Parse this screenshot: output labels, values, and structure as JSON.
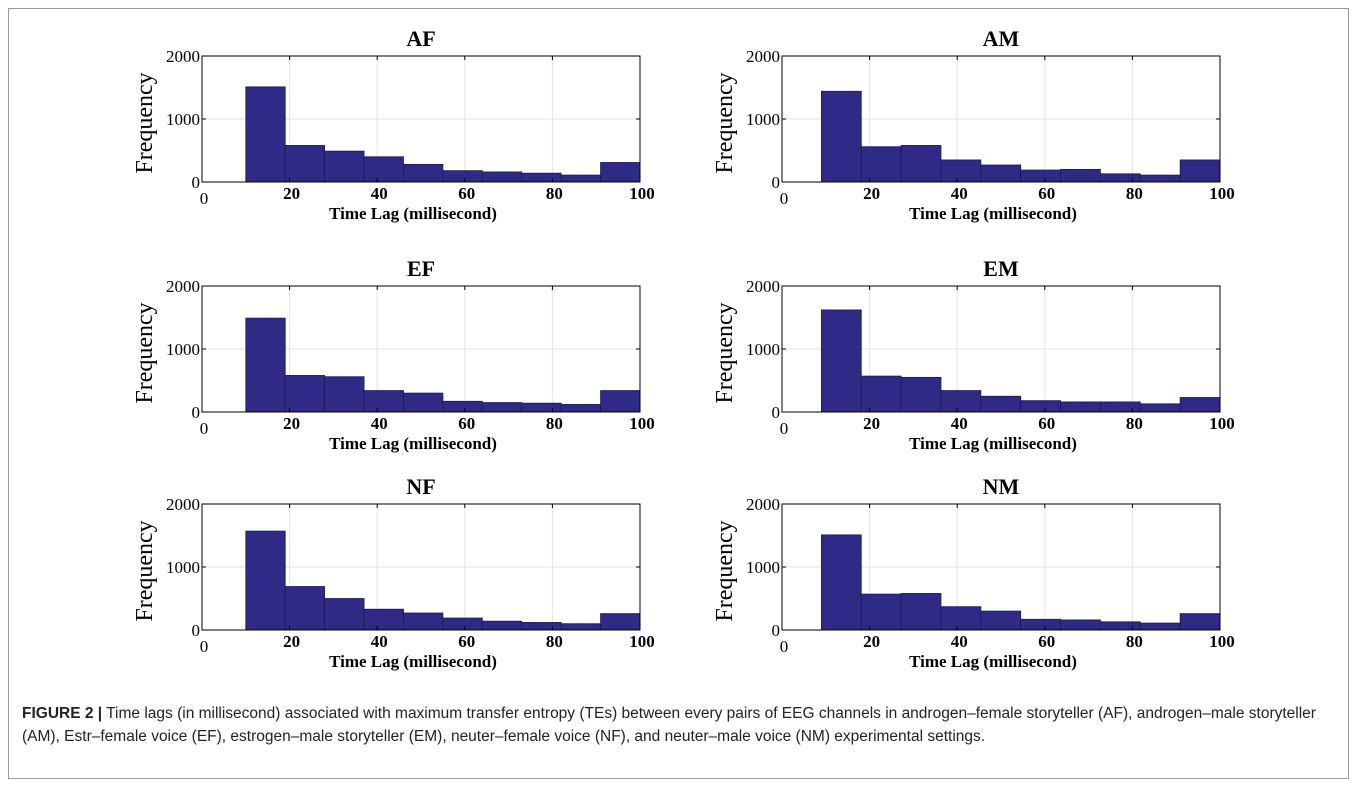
{
  "caption": {
    "label": "FIGURE 2 |",
    "text": " Time lags (in millisecond) associated with maximum transfer entropy (TEs) between every pairs of EEG channels in androgen–female storyteller (AF), androgen–male storyteller (AM), Estr–female voice (EF), estrogen–male storyteller (EM), neuter–female voice (NF), and neuter–male voice (NM) experimental settings."
  },
  "colors": {
    "bar": "#2e2a86",
    "bar_edge": "#1c1a4e",
    "grid": "#e3e3e3",
    "axis": "#000000"
  },
  "chart_data": [
    {
      "type": "bar",
      "title": "AF",
      "xlabel": "Time Lag (millisecond)",
      "ylabel": "Frequency",
      "xlim": [
        0,
        100
      ],
      "ylim": [
        0,
        2000
      ],
      "xticks": [
        "0",
        "20",
        "40",
        "60",
        "80",
        "100"
      ],
      "yticks": [
        "0",
        "1000",
        "2000"
      ],
      "bin_edges": [
        10,
        19,
        28,
        37,
        46,
        55,
        64,
        73,
        82,
        91,
        100
      ],
      "values": [
        1510,
        580,
        490,
        400,
        280,
        180,
        160,
        140,
        110,
        310
      ],
      "grid": true
    },
    {
      "type": "bar",
      "title": "AM",
      "xlabel": "Time Lag (millisecond)",
      "ylabel": "Frequency",
      "xlim": [
        0,
        100
      ],
      "ylim": [
        0,
        2000
      ],
      "xticks": [
        "0",
        "20",
        "40",
        "60",
        "80",
        "100"
      ],
      "yticks": [
        "0",
        "1000",
        "2000"
      ],
      "bin_edges": [
        9,
        18.1,
        27.2,
        36.3,
        45.4,
        54.5,
        63.6,
        72.7,
        81.8,
        90.9,
        100
      ],
      "values": [
        1440,
        560,
        580,
        350,
        270,
        190,
        200,
        130,
        110,
        350
      ],
      "grid": true
    },
    {
      "type": "bar",
      "title": "EF",
      "xlabel": "Time Lag (millisecond)",
      "ylabel": "Frequency",
      "xlim": [
        0,
        100
      ],
      "ylim": [
        0,
        2000
      ],
      "xticks": [
        "0",
        "20",
        "40",
        "60",
        "80",
        "100"
      ],
      "yticks": [
        "0",
        "1000",
        "2000"
      ],
      "bin_edges": [
        10,
        19,
        28,
        37,
        46,
        55,
        64,
        73,
        82,
        91,
        100
      ],
      "values": [
        1490,
        580,
        560,
        340,
        300,
        170,
        150,
        140,
        120,
        340
      ],
      "grid": true
    },
    {
      "type": "bar",
      "title": "EM",
      "xlabel": "Time Lag (millisecond)",
      "ylabel": "Frequency",
      "xlim": [
        0,
        100
      ],
      "ylim": [
        0,
        2000
      ],
      "xticks": [
        "0",
        "20",
        "40",
        "60",
        "80",
        "100"
      ],
      "yticks": [
        "0",
        "1000",
        "2000"
      ],
      "bin_edges": [
        9,
        18.1,
        27.2,
        36.3,
        45.4,
        54.5,
        63.6,
        72.7,
        81.8,
        90.9,
        100
      ],
      "values": [
        1620,
        570,
        550,
        340,
        250,
        180,
        160,
        160,
        130,
        230
      ],
      "grid": true
    },
    {
      "type": "bar",
      "title": "NF",
      "xlabel": "Time Lag (millisecond)",
      "ylabel": "Frequency",
      "xlim": [
        0,
        100
      ],
      "ylim": [
        0,
        2000
      ],
      "xticks": [
        "0",
        "20",
        "40",
        "60",
        "80",
        "100"
      ],
      "yticks": [
        "0",
        "1000",
        "2000"
      ],
      "bin_edges": [
        10,
        19,
        28,
        37,
        46,
        55,
        64,
        73,
        82,
        91,
        100
      ],
      "values": [
        1570,
        690,
        500,
        330,
        270,
        190,
        140,
        120,
        100,
        260
      ],
      "grid": true
    },
    {
      "type": "bar",
      "title": "NM",
      "xlabel": "Time Lag (millisecond)",
      "ylabel": "Frequency",
      "xlim": [
        0,
        100
      ],
      "ylim": [
        0,
        2000
      ],
      "xticks": [
        "0",
        "20",
        "40",
        "60",
        "80",
        "100"
      ],
      "yticks": [
        "0",
        "1000",
        "2000"
      ],
      "bin_edges": [
        9,
        18.1,
        27.2,
        36.3,
        45.4,
        54.5,
        63.6,
        72.7,
        81.8,
        90.9,
        100
      ],
      "values": [
        1510,
        570,
        580,
        370,
        300,
        170,
        160,
        130,
        110,
        260
      ],
      "grid": true
    }
  ]
}
